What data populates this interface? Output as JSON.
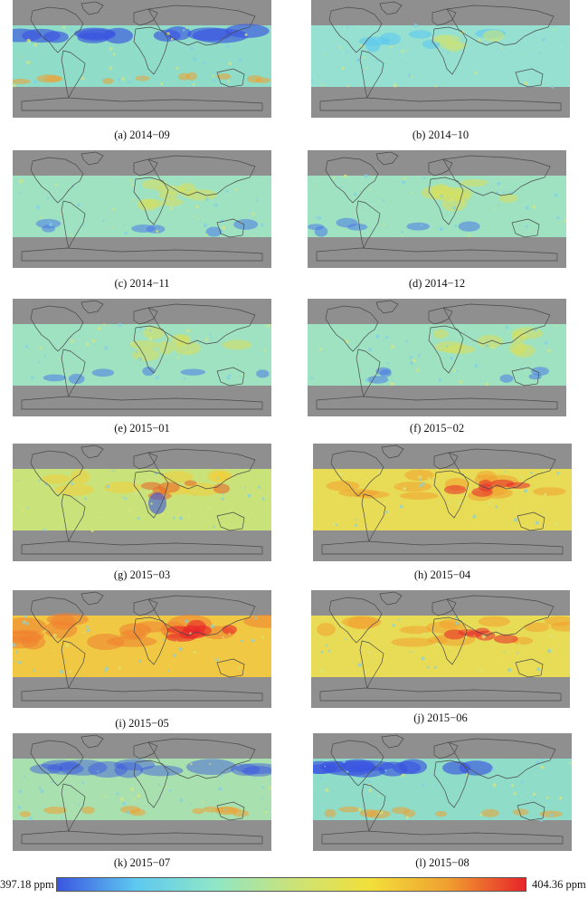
{
  "panels": [
    {
      "id": "a",
      "caption": "(a) 2014−09",
      "tone": "low-north"
    },
    {
      "id": "b",
      "caption": "(b) 2014−10",
      "tone": "mid-low"
    },
    {
      "id": "c",
      "caption": "(c) 2014−11",
      "tone": "mid"
    },
    {
      "id": "d",
      "caption": "(d) 2014−12",
      "tone": "mid"
    },
    {
      "id": "e",
      "caption": "(e) 2015−01",
      "tone": "mid"
    },
    {
      "id": "f",
      "caption": "(f)  2015−02",
      "tone": "mid"
    },
    {
      "id": "g",
      "caption": "(g) 2015−03",
      "tone": "mid-high"
    },
    {
      "id": "h",
      "caption": "(h) 2015−04",
      "tone": "high"
    },
    {
      "id": "i",
      "caption": "(i) 2015−05",
      "tone": "very-high"
    },
    {
      "id": "j",
      "caption": "(j) 2015−06",
      "tone": "high"
    },
    {
      "id": "k",
      "caption": "(k) 2015−07",
      "tone": "mid-low-north"
    },
    {
      "id": "l",
      "caption": "(l) 2015−08",
      "tone": "low-north"
    }
  ],
  "colorbar": {
    "min_label": "397.18 ppm",
    "max_label": "404.36 ppm",
    "colors": [
      "#3a55e0",
      "#5ec8f0",
      "#8ee6c8",
      "#c9e27a",
      "#f2e03a",
      "#f0a030",
      "#e8242a"
    ]
  },
  "colors": {
    "land_gray": "#8f8f8f",
    "coast": "#4a4a4a"
  }
}
